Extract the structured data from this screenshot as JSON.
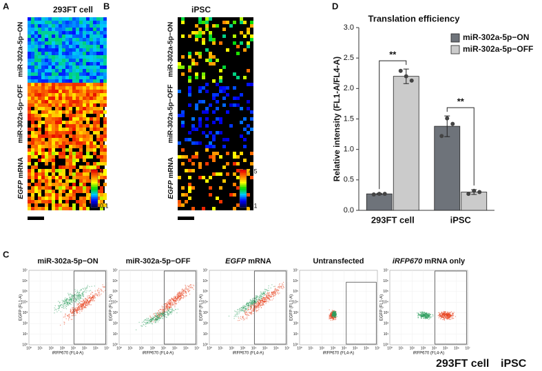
{
  "panel_labels": [
    "A",
    "B",
    "C",
    "D"
  ],
  "panel_a": {
    "title": "293FT cell",
    "rows": [
      "miR-302a-5p−ON",
      "miR-302a-5p−OFF"
    ],
    "row3": {
      "gene": "EGFP",
      "text": "mRNA"
    },
    "colorbar": [
      4,
      0.1
    ]
  },
  "panel_b": {
    "title": "iPSC",
    "rows": [
      "miR-302a-5p−ON",
      "miR-302a-5p−OFF"
    ],
    "row3": {
      "gene": "EGFP",
      "text": "mRNA"
    },
    "colorbar": [
      4.5,
      0.1
    ]
  },
  "chart_data": {
    "type": "bar",
    "title": "Translation efficiency",
    "y_label": "Relative intensity (FL1-A/FL4-A)",
    "categories": [
      "293FT cell",
      "iPSC"
    ],
    "series": [
      {
        "name": "miR-302a-5p−ON",
        "color": "#6e737a",
        "values": [
          0.27,
          1.38
        ],
        "errors": [
          0.01,
          0.17
        ],
        "points": [
          [
            0.26,
            0.27,
            0.27
          ],
          [
            1.22,
            1.51,
            1.42
          ]
        ]
      },
      {
        "name": "miR-302a-5p−OFF",
        "color": "#cbcbcb",
        "values": [
          2.2,
          0.3
        ],
        "errors": [
          0.12,
          0.04
        ],
        "points": [
          [
            2.29,
            2.2,
            2.13
          ],
          [
            0.27,
            0.32,
            0.3
          ]
        ]
      }
    ],
    "annotations": [
      "**",
      "**"
    ],
    "ylim": [
      0,
      3
    ],
    "yticks": [
      {
        "value": 0,
        "label": "0.0"
      },
      0.5,
      {
        "value": 1,
        "label": "1.0"
      },
      1.5,
      {
        "value": 2,
        "label": "2.0"
      },
      2.5,
      {
        "value": 3,
        "label": "3.0"
      }
    ],
    "legend": "top-right"
  },
  "panel_c": {
    "plots": [
      {
        "title": "miR-302a-5p−ON"
      },
      {
        "title": "miR-302a-5p−OFF"
      },
      {
        "gene": "EGFP",
        "title": "mRNA"
      },
      {
        "title": "Untransfected"
      },
      {
        "gene": "iRFP670",
        "title": "mRNA only"
      }
    ],
    "y_label": "EGFP (FL1-A)",
    "x_label": "iRFP670 (FL4-A)",
    "tick_labels": [
      "10⁰",
      "10¹",
      "10²",
      "10³",
      "10⁴",
      "10⁵",
      "10⁶",
      "10⁷"
    ],
    "legend": [
      {
        "name": "293FT cell",
        "color": "#e8401c"
      },
      {
        "name": "iPSC",
        "color": "#2e9e5f"
      }
    ]
  }
}
